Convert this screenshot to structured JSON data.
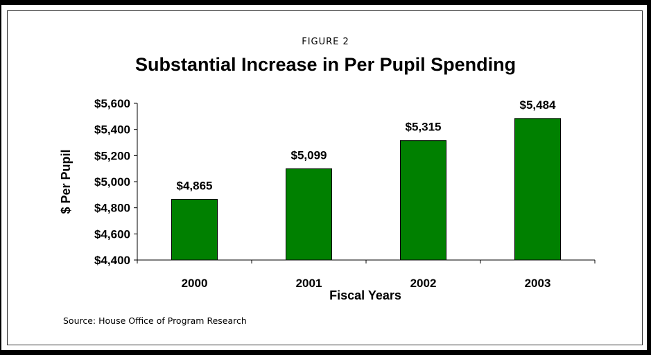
{
  "figure_label": "FIGURE 2",
  "source": "Source: House Office of Program Research",
  "colors": {
    "bar_fill": "#008000",
    "bar_stroke": "#000000",
    "axis": "#000000",
    "frame": "#000000"
  },
  "chart_data": {
    "type": "bar",
    "title": "Substantial Increase in Per Pupil Spending",
    "xlabel": "Fiscal Years",
    "ylabel": "$ Per Pupil",
    "categories": [
      "2000",
      "2001",
      "2002",
      "2003"
    ],
    "values": [
      4865,
      5099,
      5315,
      5484
    ],
    "value_labels": [
      "$4,865",
      "$5,099",
      "$5,315",
      "$5,484"
    ],
    "ylim": [
      4400,
      5600
    ],
    "yticks": [
      4400,
      4600,
      4800,
      5000,
      5200,
      5400,
      5600
    ],
    "ytick_labels": [
      "$4,400",
      "$4,600",
      "$4,800",
      "$5,000",
      "$5,200",
      "$5,400",
      "$5,600"
    ],
    "grid": false,
    "legend": "none"
  }
}
